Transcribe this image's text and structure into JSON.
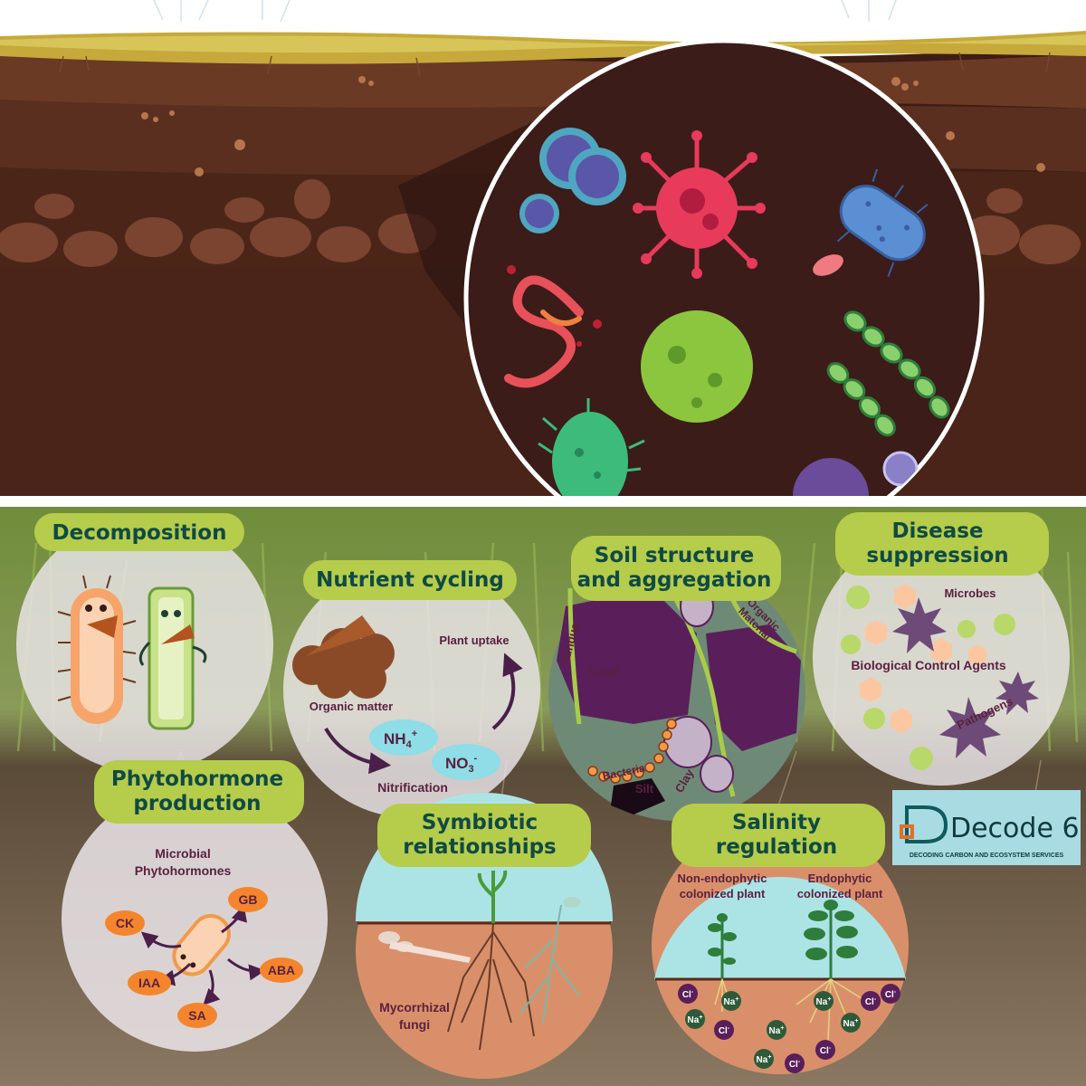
{
  "panels": {
    "decomposition": {
      "title": "Decomposition"
    },
    "nutrient_cycling": {
      "title": "Nutrient cycling",
      "organic_matter": "Organic matter",
      "plant_uptake": "Plant uptake",
      "ammonium": "NH",
      "ammonium_sub": "4",
      "ammonium_sup": "+",
      "nitrate": "NO",
      "nitrate_sub": "3",
      "nitrate_sup": "-",
      "nitrification": "Nitrification"
    },
    "soil_structure": {
      "title_line1": "Soil structure",
      "title_line2": "and aggregation",
      "fungus": "Fungus",
      "organic_material_1": "Organic",
      "organic_material_2": "Material",
      "sand": "Sand",
      "bacteria": "Bacteria",
      "silt": "Silt",
      "clay": "Clay"
    },
    "disease_suppression": {
      "title_line1": "Disease",
      "title_line2": "suppression",
      "microbes": "Microbes",
      "biological_control_agents": "Biological Control Agents",
      "pathogens": "Pathogens"
    },
    "phytohormone": {
      "title_line1": "Phytohormone",
      "title_line2": "production",
      "subtitle_line1": "Microbial",
      "subtitle_line2": "Phytohormones",
      "hormones": [
        "CK",
        "GB",
        "IAA",
        "ABA",
        "SA"
      ]
    },
    "symbiotic": {
      "title_line1": "Symbiotic",
      "title_line2": "relationships",
      "fungi_line1": "Mycorrhizal",
      "fungi_line2": "fungi"
    },
    "salinity": {
      "title_line1": "Salinity",
      "title_line2": "regulation",
      "left_line1": "Non-endophytic",
      "left_line2": "colonized plant",
      "right_line1": "Endophytic",
      "right_line2": "colonized plant",
      "sodium": "Na",
      "sodium_sup": "+",
      "chloride": "Cl",
      "chloride_sup": "-"
    }
  },
  "logo": {
    "name": "Decode 6",
    "tagline": "DECODING CARBON AND ECOSYSTEM SERVICES"
  },
  "colors": {
    "title_bg": "#b6cc4b",
    "title_text": "#0f4a44",
    "label_text": "#5a2140",
    "soil_dark": "#4a2418",
    "logo_bg": "#a9dbe3"
  }
}
